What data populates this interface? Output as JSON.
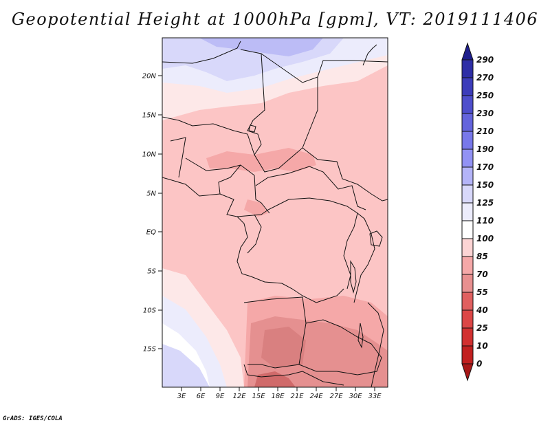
{
  "title": "Geopotential Height at 1000hPa [gpm], VT: 2019111406",
  "credit": "GrADS: IGES/COLA",
  "map": {
    "lat_labels": [
      "20N",
      "15N",
      "10N",
      "5N",
      "EQ",
      "5S",
      "10S",
      "15S"
    ],
    "lon_labels": [
      "3E",
      "6E",
      "9E",
      "12E",
      "15E",
      "18E",
      "21E",
      "24E",
      "27E",
      "30E",
      "33E"
    ],
    "field_colors": {
      "c150": "#d8d8fa",
      "c125": "#ececfc",
      "c110": "#fde8e8",
      "c100": "#fcc5c5",
      "c85": "#f5a8a8",
      "c70": "#e59090",
      "c55": "#d98080",
      "land_border": "#111111"
    }
  },
  "colorbar": {
    "labels": [
      "290",
      "270",
      "250",
      "230",
      "210",
      "190",
      "170",
      "150",
      "125",
      "110",
      "100",
      "85",
      "70",
      "55",
      "40",
      "25",
      "10",
      "0"
    ],
    "colors": [
      "#1e1e8c",
      "#2e2ea6",
      "#3c3cba",
      "#4e4ecc",
      "#6464dc",
      "#7878ea",
      "#9292f4",
      "#b4b4f8",
      "#d8d8fa",
      "#ececfc",
      "#ffffff",
      "#fcd4d4",
      "#f5a8a8",
      "#e89090",
      "#e06060",
      "#dc4646",
      "#d23030",
      "#c22020",
      "#a81818"
    ]
  }
}
